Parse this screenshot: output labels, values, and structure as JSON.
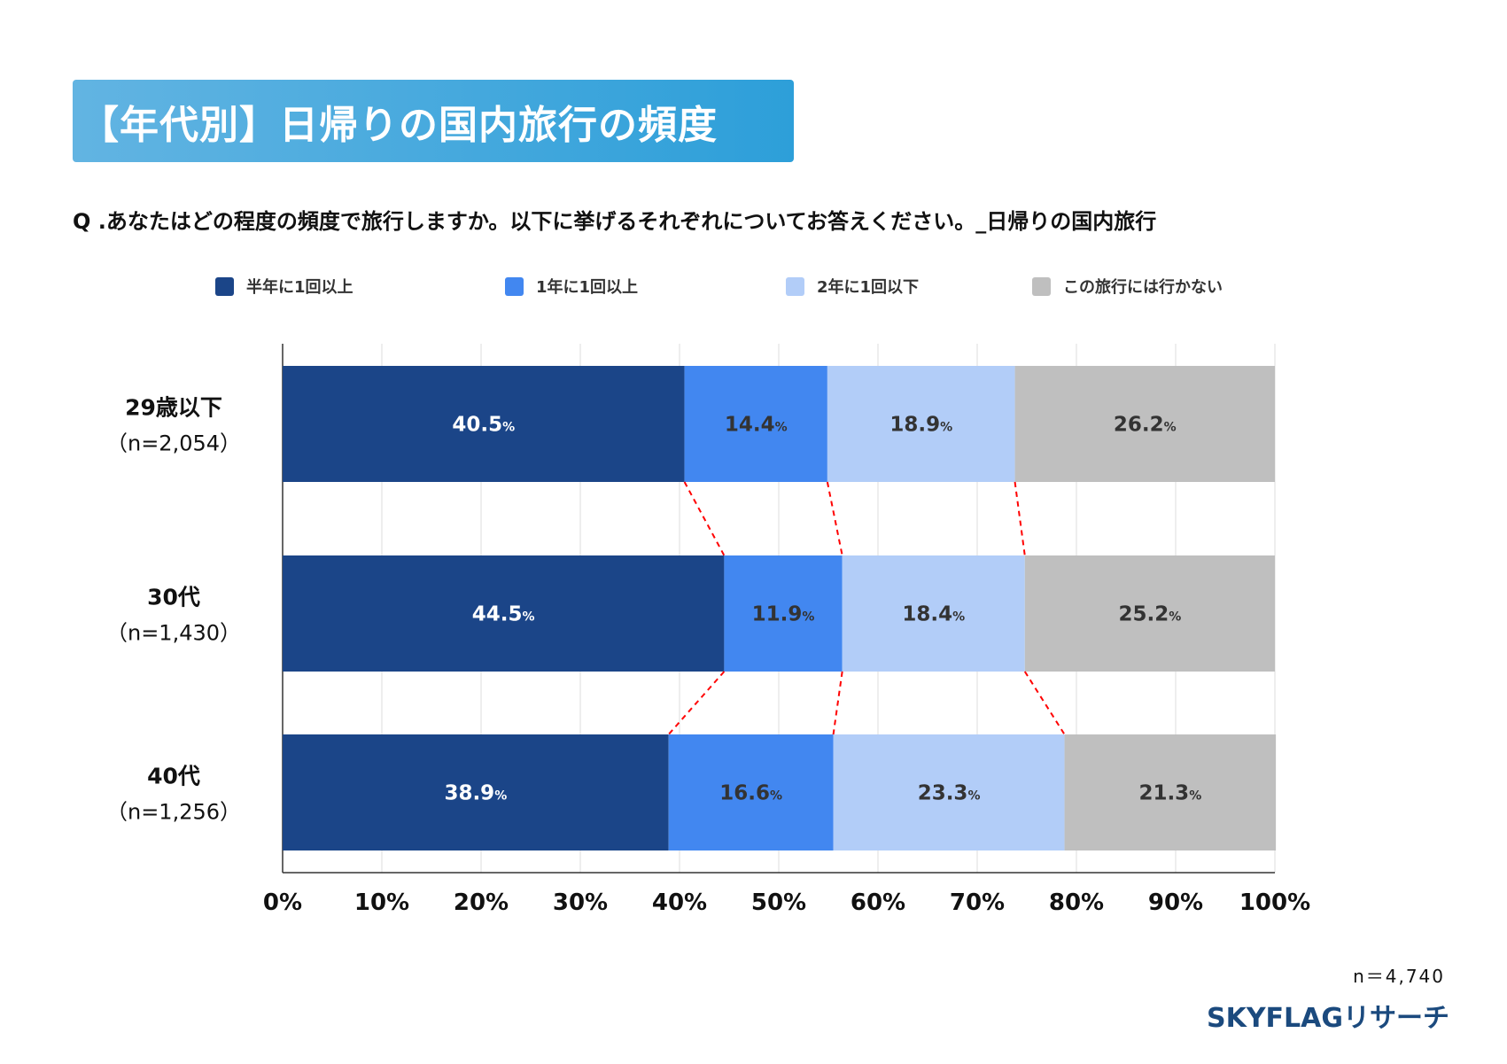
{
  "title": "【年代別】日帰りの国内旅行の頻度",
  "question": "Q .あなたはどの程度の頻度で旅行しますか。以下に挙げるそれぞれについてお答えください。_日帰りの国内旅行",
  "footer": {
    "n_total": "n＝4,740",
    "brand": "SKYFLAGリサーチ"
  },
  "chart_data": {
    "type": "bar",
    "orientation": "horizontal",
    "stacked": true,
    "categories": [
      "29歳以下",
      "30代",
      "40代"
    ],
    "category_n": [
      "（n=2,054）",
      "（n=1,430）",
      "（n=1,256）"
    ],
    "series": [
      {
        "name": "半年に1回以上",
        "color": "#1b4588",
        "label_color": "#ffffff",
        "values": [
          40.5,
          44.5,
          38.9
        ]
      },
      {
        "name": "1年に1回以上",
        "color": "#4287f0",
        "label_color": "#333333",
        "values": [
          14.4,
          11.9,
          16.6
        ]
      },
      {
        "name": "2年に1回以下",
        "color": "#b2cdf8",
        "label_color": "#333333",
        "values": [
          18.9,
          18.4,
          23.3
        ]
      },
      {
        "name": "この旅行には行かない",
        "color": "#bfbfbf",
        "label_color": "#333333",
        "values": [
          26.2,
          25.2,
          21.3
        ]
      }
    ],
    "xlim": [
      0,
      100
    ],
    "xticks": [
      "0%",
      "10%",
      "20%",
      "30%",
      "40%",
      "50%",
      "60%",
      "70%",
      "80%",
      "90%",
      "100%"
    ],
    "grid": true,
    "legend": "top",
    "connector_color": "#ff0000",
    "unit": "%"
  }
}
